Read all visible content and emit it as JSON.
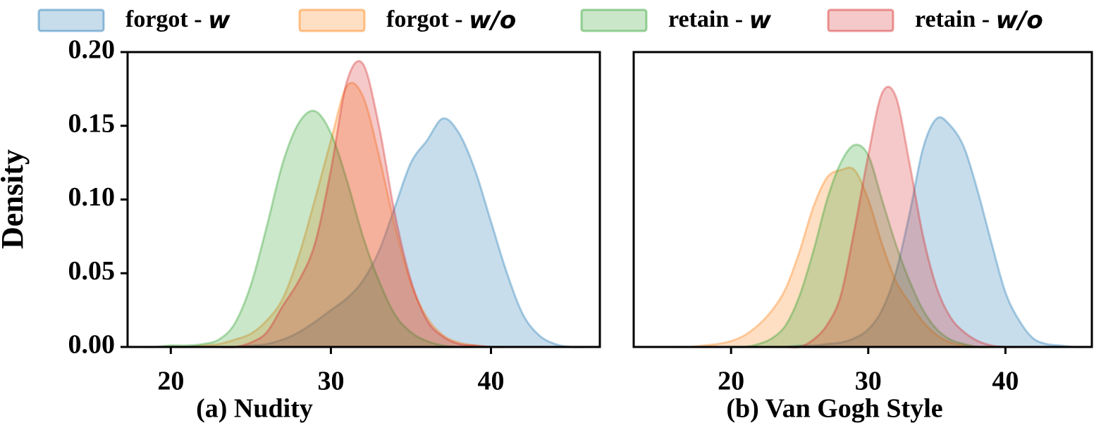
{
  "chart_data": [
    {
      "type": "area",
      "xlabel": "(a) Nudity",
      "ylabel": "Density",
      "x": [
        18,
        19,
        20,
        21,
        22,
        23,
        24,
        25,
        26,
        27,
        28,
        29,
        30,
        31,
        32,
        33,
        34,
        35,
        36,
        37,
        38,
        39,
        40,
        41,
        42,
        43,
        44,
        45,
        46
      ],
      "xlim": [
        17.3,
        46.8
      ],
      "xticks": [
        20,
        30,
        40
      ],
      "ylim": [
        0,
        0.2
      ],
      "yticks": [
        {
          "value": 0,
          "label": "0.00"
        },
        {
          "value": 0.05,
          "label": "0.05"
        },
        {
          "value": 0.1,
          "label": "0.10"
        },
        {
          "value": 0.15,
          "label": "0.15"
        },
        {
          "value": 0.2,
          "label": "0.20"
        }
      ],
      "series": [
        {
          "name": "forgot - w",
          "color": "#1f77b4",
          "values": [
            0,
            0,
            0,
            0,
            0,
            0,
            0,
            0.001,
            0.002,
            0.005,
            0.01,
            0.017,
            0.025,
            0.033,
            0.045,
            0.065,
            0.095,
            0.125,
            0.14,
            0.155,
            0.145,
            0.12,
            0.085,
            0.05,
            0.022,
            0.008,
            0.002,
            0,
            0
          ]
        },
        {
          "name": "forgot - w/o",
          "color": "#ff7f0e",
          "values": [
            0,
            0,
            0,
            0,
            0.001,
            0.002,
            0.005,
            0.009,
            0.018,
            0.033,
            0.062,
            0.1,
            0.14,
            0.177,
            0.17,
            0.13,
            0.082,
            0.043,
            0.02,
            0.008,
            0.003,
            0.001,
            0,
            0,
            0,
            0,
            0,
            0,
            0
          ]
        },
        {
          "name": "retain - w",
          "color": "#2ca02c",
          "values": [
            0,
            0,
            0.001,
            0.001,
            0.002,
            0.005,
            0.016,
            0.042,
            0.082,
            0.125,
            0.152,
            0.16,
            0.145,
            0.113,
            0.075,
            0.045,
            0.022,
            0.01,
            0.004,
            0.001,
            0,
            0,
            0,
            0,
            0,
            0,
            0,
            0,
            0
          ]
        },
        {
          "name": "retain - w/o",
          "color": "#d62728",
          "values": [
            0,
            0,
            0,
            0,
            0,
            0,
            0,
            0.003,
            0.01,
            0.028,
            0.045,
            0.07,
            0.12,
            0.18,
            0.192,
            0.15,
            0.09,
            0.045,
            0.018,
            0.007,
            0.002,
            0.001,
            0,
            0,
            0,
            0,
            0,
            0,
            0
          ]
        }
      ]
    },
    {
      "type": "area",
      "xlabel": "(b) Van Gogh Style",
      "x": [
        14,
        15,
        16,
        17,
        18,
        19,
        20,
        21,
        22,
        23,
        24,
        25,
        26,
        27,
        28,
        29,
        30,
        31,
        32,
        33,
        34,
        35,
        36,
        37,
        38,
        39,
        40,
        41,
        42,
        43,
        44,
        45,
        46
      ],
      "xlim": [
        12.9,
        46.3
      ],
      "xticks": [
        20,
        30,
        40
      ],
      "ylim": [
        0,
        0.2
      ],
      "series": [
        {
          "color": "#1f77b4",
          "values": [
            0,
            0,
            0,
            0,
            0,
            0,
            0,
            0,
            0,
            0,
            0,
            0.001,
            0.001,
            0.002,
            0.003,
            0.006,
            0.012,
            0.025,
            0.05,
            0.09,
            0.135,
            0.155,
            0.15,
            0.135,
            0.105,
            0.07,
            0.037,
            0.018,
            0.006,
            0.002,
            0.001,
            0,
            0
          ]
        },
        {
          "color": "#ff7f0e",
          "values": [
            0,
            0,
            0,
            0,
            0.001,
            0.002,
            0.004,
            0.008,
            0.015,
            0.025,
            0.04,
            0.065,
            0.095,
            0.115,
            0.12,
            0.12,
            0.1,
            0.07,
            0.045,
            0.03,
            0.017,
            0.008,
            0.003,
            0.001,
            0,
            0,
            0,
            0,
            0,
            0,
            0,
            0,
            0
          ]
        },
        {
          "color": "#2ca02c",
          "values": [
            0,
            0,
            0,
            0,
            0,
            0,
            0,
            0,
            0.002,
            0.006,
            0.015,
            0.035,
            0.065,
            0.1,
            0.125,
            0.137,
            0.13,
            0.1,
            0.07,
            0.045,
            0.025,
            0.012,
            0.005,
            0.002,
            0,
            0,
            0,
            0,
            0,
            0,
            0,
            0,
            0
          ]
        },
        {
          "color": "#d62728",
          "values": [
            0,
            0,
            0,
            0,
            0,
            0,
            0,
            0,
            0,
            0,
            0,
            0,
            0.005,
            0.015,
            0.035,
            0.08,
            0.13,
            0.172,
            0.17,
            0.125,
            0.075,
            0.04,
            0.02,
            0.01,
            0.004,
            0.001,
            0,
            0,
            0,
            0,
            0,
            0,
            0
          ]
        }
      ]
    }
  ]
}
